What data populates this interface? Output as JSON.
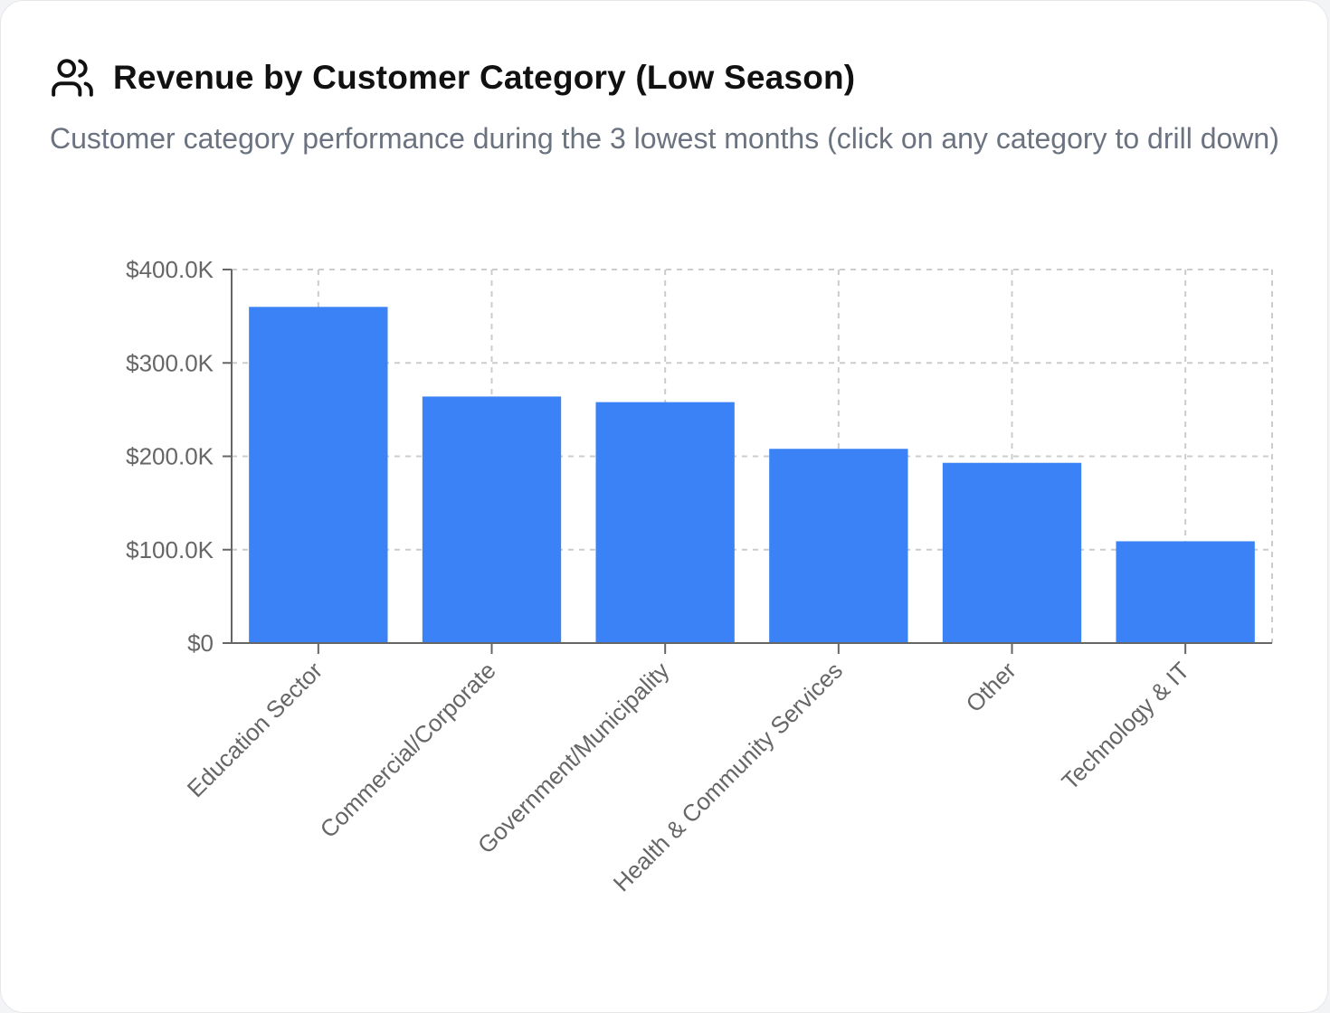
{
  "header": {
    "title": "Revenue by Customer Category (Low Season)",
    "subtitle": "Customer category performance during the 3 lowest months (click on any category to drill down)",
    "icon": "users-icon"
  },
  "colors": {
    "bar": "#3b82f6",
    "grid": "#cccccc",
    "axis": "#666666",
    "tick_text": "#666666"
  },
  "chart_data": {
    "type": "bar",
    "categories": [
      "Education Sector",
      "Commercial/Corporate",
      "Government/Municipality",
      "Health & Community Services",
      "Other",
      "Technology & IT"
    ],
    "values": [
      360000,
      264000,
      258000,
      208000,
      193000,
      109000
    ],
    "ylim": [
      0,
      400000
    ],
    "yticks": [
      0,
      100000,
      200000,
      300000,
      400000
    ],
    "ytick_labels": [
      "$0",
      "$100.0K",
      "$200.0K",
      "$300.0K",
      "$400.0K"
    ],
    "grid": true
  }
}
